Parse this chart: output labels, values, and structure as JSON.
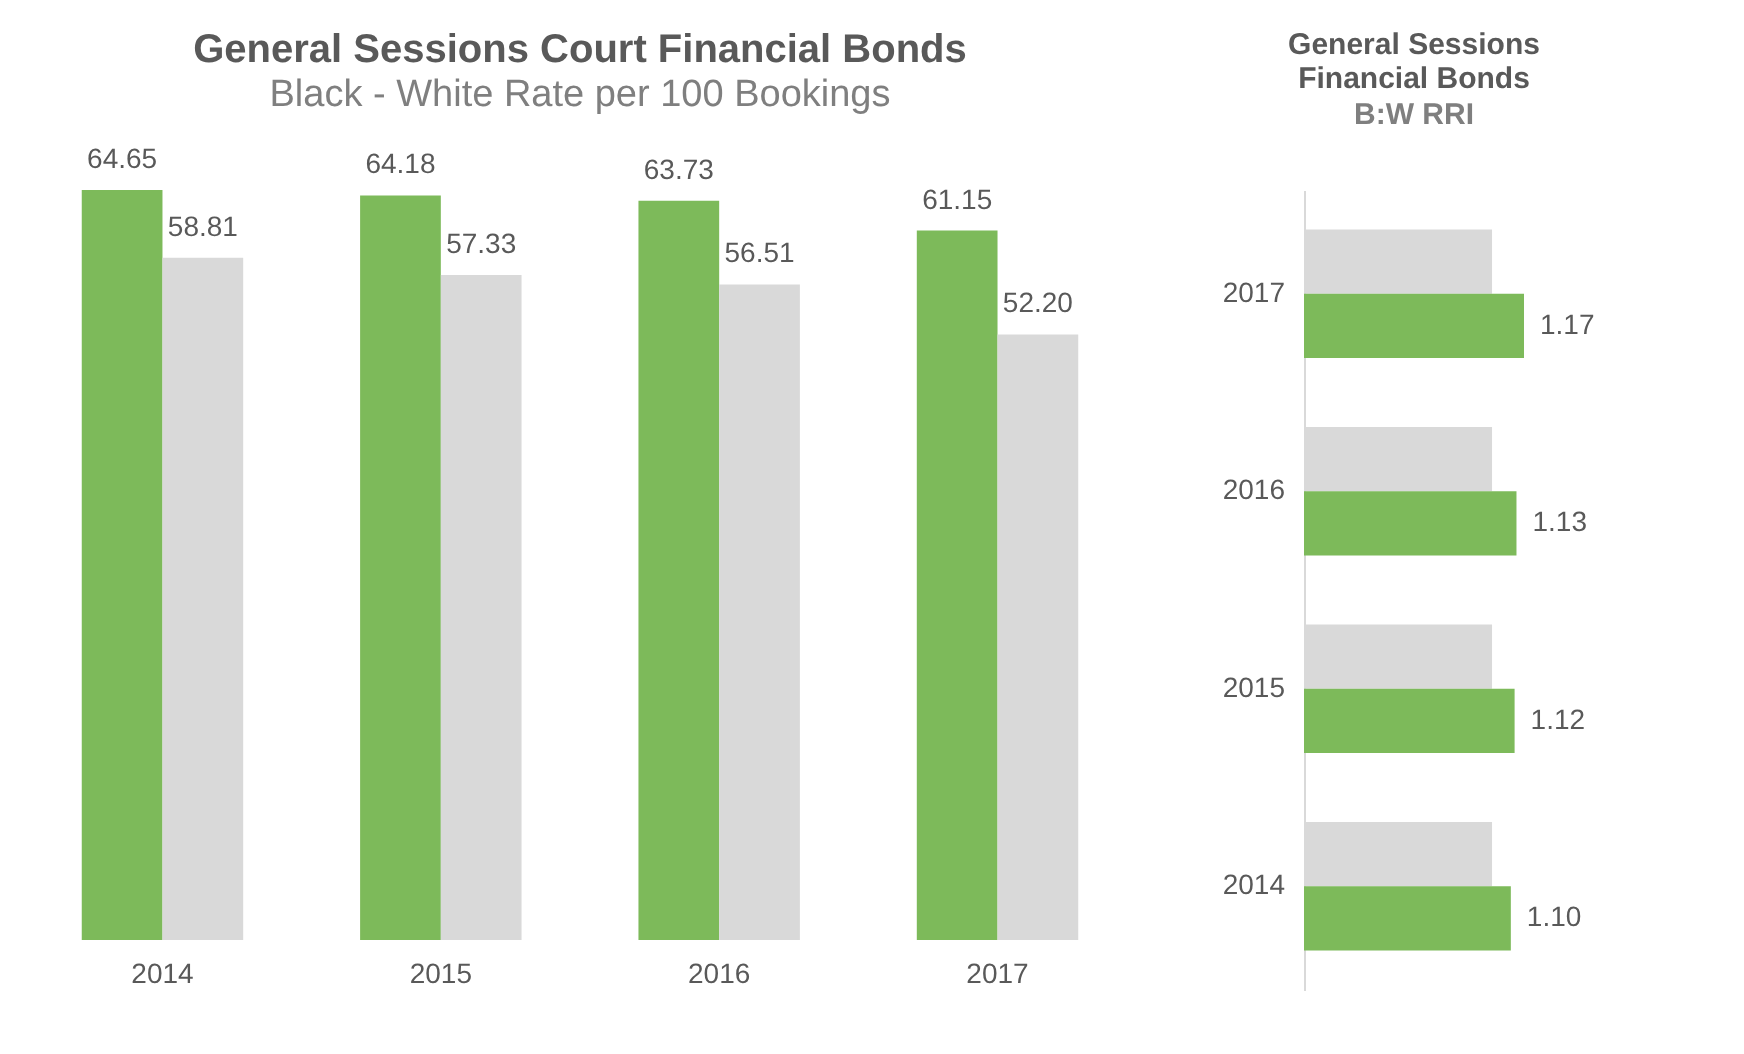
{
  "chart_data": [
    {
      "type": "bar",
      "title": "General Sessions Court Financial Bonds",
      "subtitle": "Black - White Rate per 100 Bookings",
      "categories": [
        "2014",
        "2015",
        "2016",
        "2017"
      ],
      "series": [
        {
          "color": "#7dba5a",
          "values": [
            64.65,
            64.18,
            63.73,
            61.15
          ],
          "value_labels": [
            "64.65",
            "64.18",
            "63.73",
            "61.15"
          ]
        },
        {
          "color": "#d9d9d9",
          "values": [
            58.81,
            57.33,
            56.51,
            52.2
          ],
          "value_labels": [
            "58.81",
            "57.33",
            "56.51",
            "52.20"
          ]
        }
      ],
      "tick_labels": "x",
      "legend": false
    },
    {
      "type": "bar",
      "orientation": "horizontal",
      "title": "General Sessions Financial Bonds",
      "subtitle": "B:W RRI",
      "categories": [
        "2017",
        "2016",
        "2015",
        "2014"
      ],
      "series": [
        {
          "color": "#d9d9d9",
          "values": [
            1.0,
            1.0,
            1.0,
            1.0
          ]
        },
        {
          "color": "#7dba5a",
          "values": [
            1.17,
            1.13,
            1.12,
            1.1
          ],
          "value_labels": [
            "1.17",
            "1.13",
            "1.12",
            "1.10"
          ]
        }
      ],
      "tick_labels": "y",
      "legend": false
    }
  ]
}
